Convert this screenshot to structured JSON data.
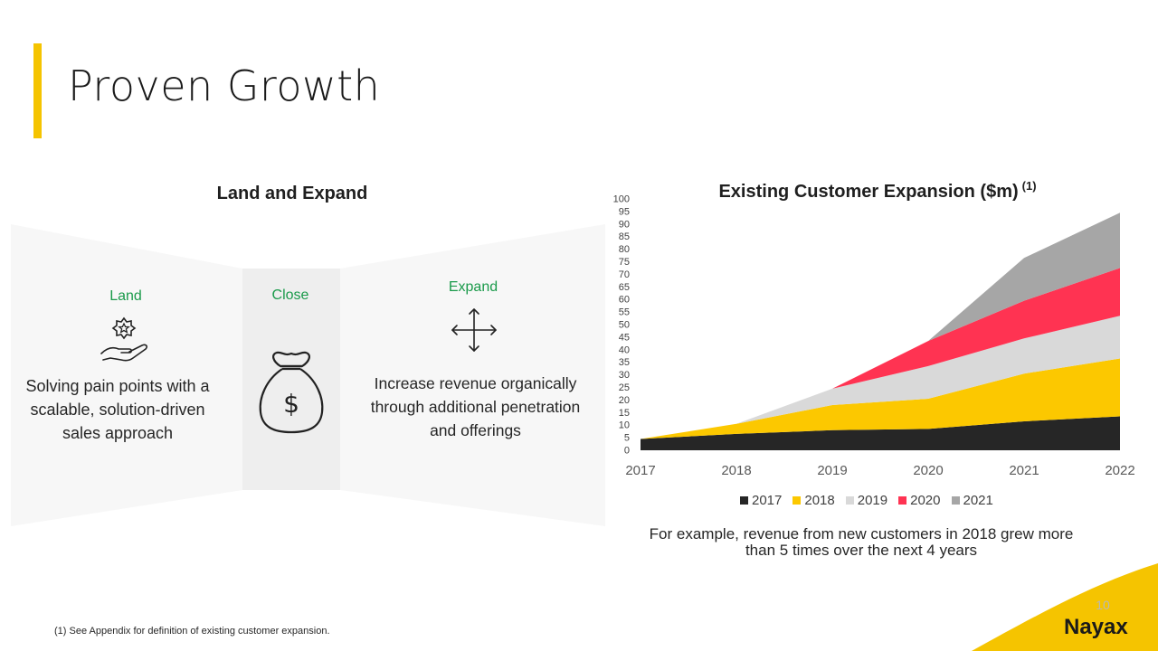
{
  "slide": {
    "title": "Proven Growth",
    "page_number": "10",
    "footnote": "(1) See Appendix for definition of existing customer expansion.",
    "logo_text": "Nayax",
    "accent_color": "#f5c400"
  },
  "land_expand": {
    "heading": "Land and Expand",
    "land": {
      "label": "Land",
      "text": "Solving pain points with a scalable, solution-driven sales approach",
      "icon": "hand-star-icon"
    },
    "close": {
      "label": "Close",
      "icon": "money-bag-icon"
    },
    "expand": {
      "label": "Expand",
      "text": "Increase revenue organically through additional penetration and offerings",
      "icon": "four-arrows-icon"
    }
  },
  "chart_section": {
    "title": "Existing Customer Expansion ($m)",
    "title_superscript": "(1)",
    "note": "For example, revenue from new customers in 2018 grew more than 5 times over the next 4 years"
  },
  "chart_data": {
    "type": "area",
    "title": "Existing Customer Expansion ($m)",
    "x": [
      "2017",
      "2018",
      "2019",
      "2020",
      "2021",
      "2022"
    ],
    "ylim": [
      0,
      100
    ],
    "yticks": [
      0,
      5,
      10,
      15,
      20,
      25,
      30,
      35,
      40,
      45,
      50,
      55,
      60,
      65,
      70,
      75,
      80,
      85,
      90,
      95,
      100
    ],
    "stacked": true,
    "grid": false,
    "legend_position": "bottom",
    "series": [
      {
        "name": "2017",
        "color": "#262626",
        "values": [
          4.5,
          6.5,
          8,
          8.5,
          11.5,
          13.5
        ]
      },
      {
        "name": "2018",
        "color": "#fcc800",
        "values": [
          0,
          4,
          10,
          12,
          19,
          23
        ]
      },
      {
        "name": "2019",
        "color": "#d9d9d9",
        "values": [
          0,
          0,
          6.5,
          13,
          14,
          17
        ]
      },
      {
        "name": "2020",
        "color": "#ff3352",
        "values": [
          0,
          0,
          0,
          10,
          15,
          19
        ]
      },
      {
        "name": "2021",
        "color": "#a6a6a6",
        "values": [
          0,
          0,
          0,
          0,
          17,
          22
        ]
      }
    ]
  }
}
